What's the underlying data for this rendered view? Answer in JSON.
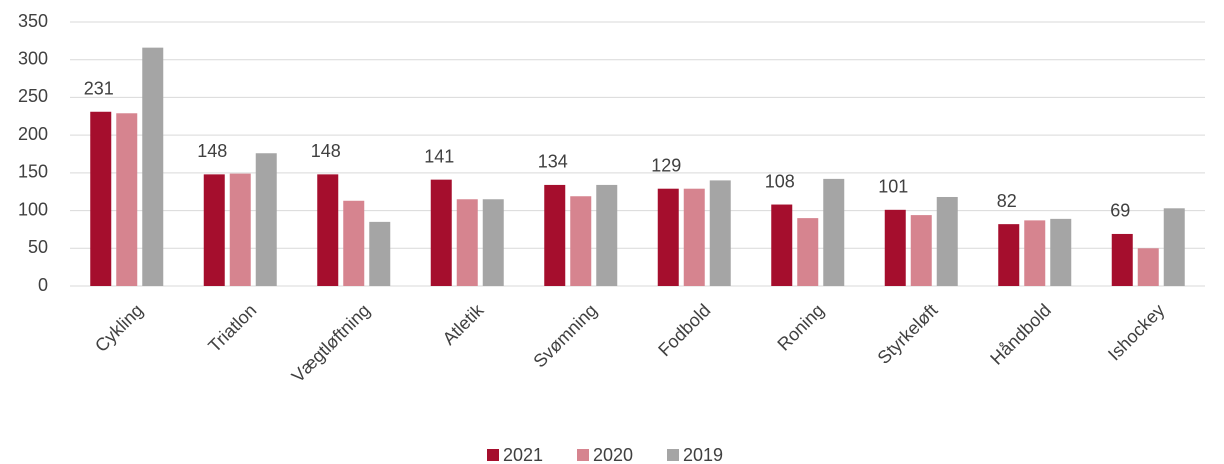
{
  "chart_data": {
    "type": "bar",
    "categories": [
      "Cykling",
      "Triatlon",
      "Vægtløftning",
      "Atletik",
      "Svømning",
      "Fodbold",
      "Roning",
      "Styrkeløft",
      "Håndbold",
      "Ishockey"
    ],
    "series": [
      {
        "name": "2021",
        "color": "#a50e2d",
        "data_labels": true,
        "values": [
          231,
          148,
          148,
          141,
          134,
          129,
          108,
          101,
          82,
          69
        ]
      },
      {
        "name": "2020",
        "color": "#d6848f",
        "data_labels": false,
        "values": [
          229,
          149,
          113,
          115,
          119,
          129,
          90,
          94,
          87,
          50
        ]
      },
      {
        "name": "2019",
        "color": "#a5a5a5",
        "data_labels": false,
        "values": [
          316,
          176,
          85,
          115,
          134,
          140,
          142,
          118,
          89,
          103
        ]
      }
    ],
    "ylim": [
      0,
      350
    ],
    "yticks": [
      0,
      50,
      100,
      150,
      200,
      250,
      300,
      350
    ],
    "grid": true,
    "legend": "bottom"
  }
}
